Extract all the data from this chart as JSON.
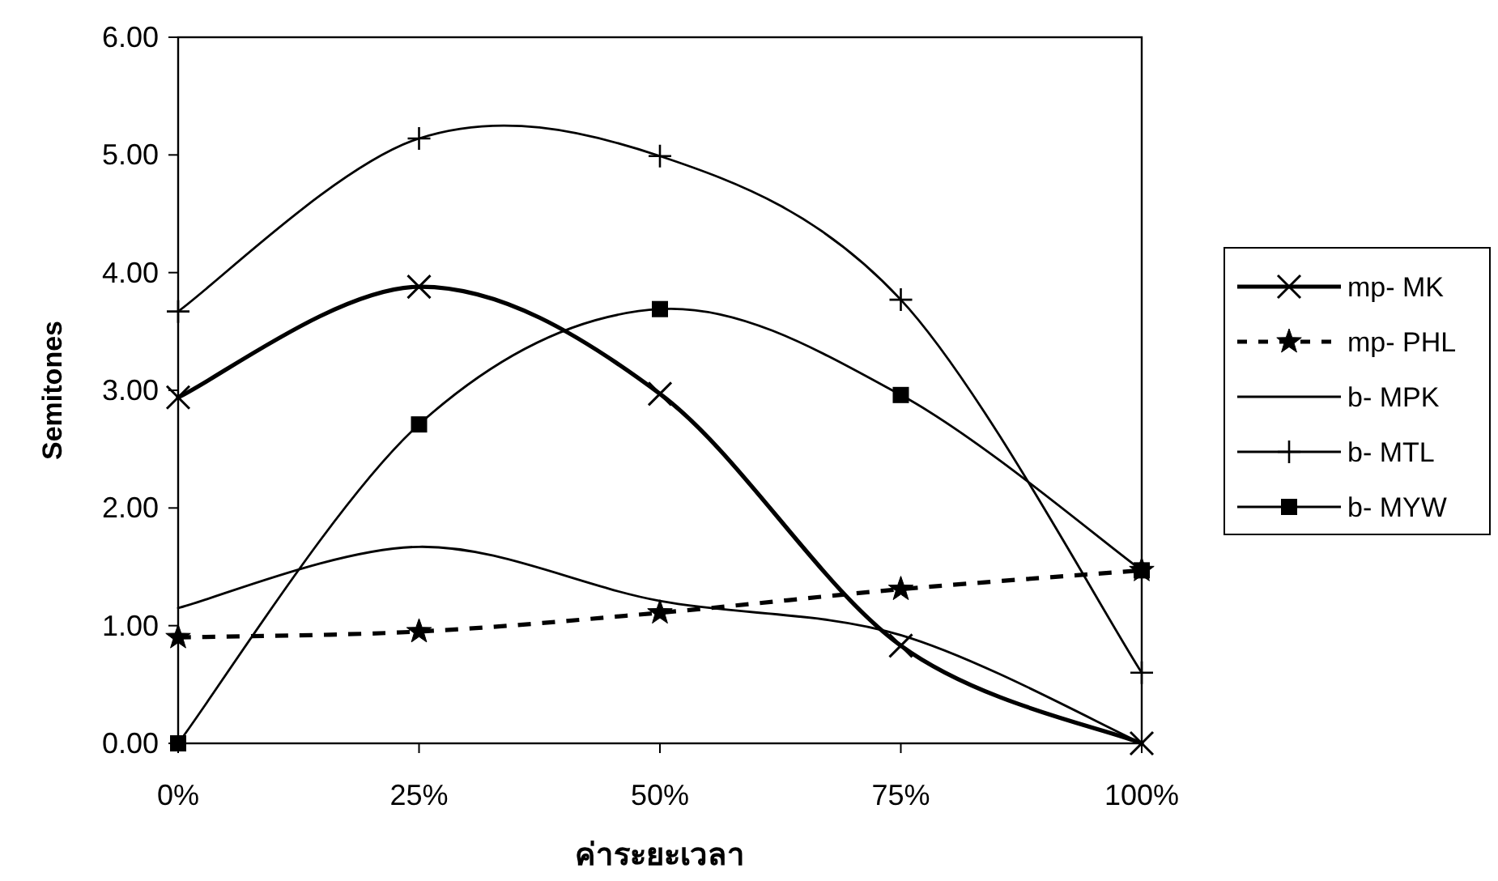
{
  "chart_data": {
    "type": "line",
    "xlabel": "ค่าระยะเวลา",
    "ylabel": "Semitones",
    "categories": [
      "0%",
      "25%",
      "50%",
      "75%",
      "100%"
    ],
    "ylim": [
      0,
      6
    ],
    "yticks": [
      {
        "value": 0,
        "label": "0.00"
      },
      {
        "value": 1,
        "label": "1.00"
      },
      {
        "value": 2,
        "label": "2.00"
      },
      {
        "value": 3,
        "label": "3.00"
      },
      {
        "value": 4,
        "label": "4.00"
      },
      {
        "value": 5,
        "label": "5.00"
      },
      {
        "value": 6,
        "label": "6.00"
      }
    ],
    "legend": "right",
    "grid": false,
    "series": [
      {
        "name": "mp- MK",
        "color": "#000000",
        "marker": "cross",
        "line_style": "solid",
        "values": [
          2.94,
          3.88,
          2.97,
          0.83,
          0
        ]
      },
      {
        "name": "mp- PHL",
        "color": "#000000",
        "marker": "star",
        "line_style": "dashed",
        "values": [
          0.9,
          0.95,
          1.11,
          1.31,
          1.47
        ]
      },
      {
        "name": "b- MPK",
        "color": "#000000",
        "marker": "none",
        "line_style": "solid",
        "values": [
          1.15,
          1.67,
          1.21,
          0.92,
          0
        ]
      },
      {
        "name": "b- MTL",
        "color": "#000000",
        "marker": "plus",
        "line_style": "solid",
        "values": [
          3.67,
          5.14,
          4.99,
          3.77,
          0.6
        ]
      },
      {
        "name": "b- MYW",
        "color": "#000000",
        "marker": "square",
        "line_style": "solid",
        "values": [
          0,
          2.71,
          3.69,
          2.96,
          1.47
        ]
      }
    ]
  }
}
